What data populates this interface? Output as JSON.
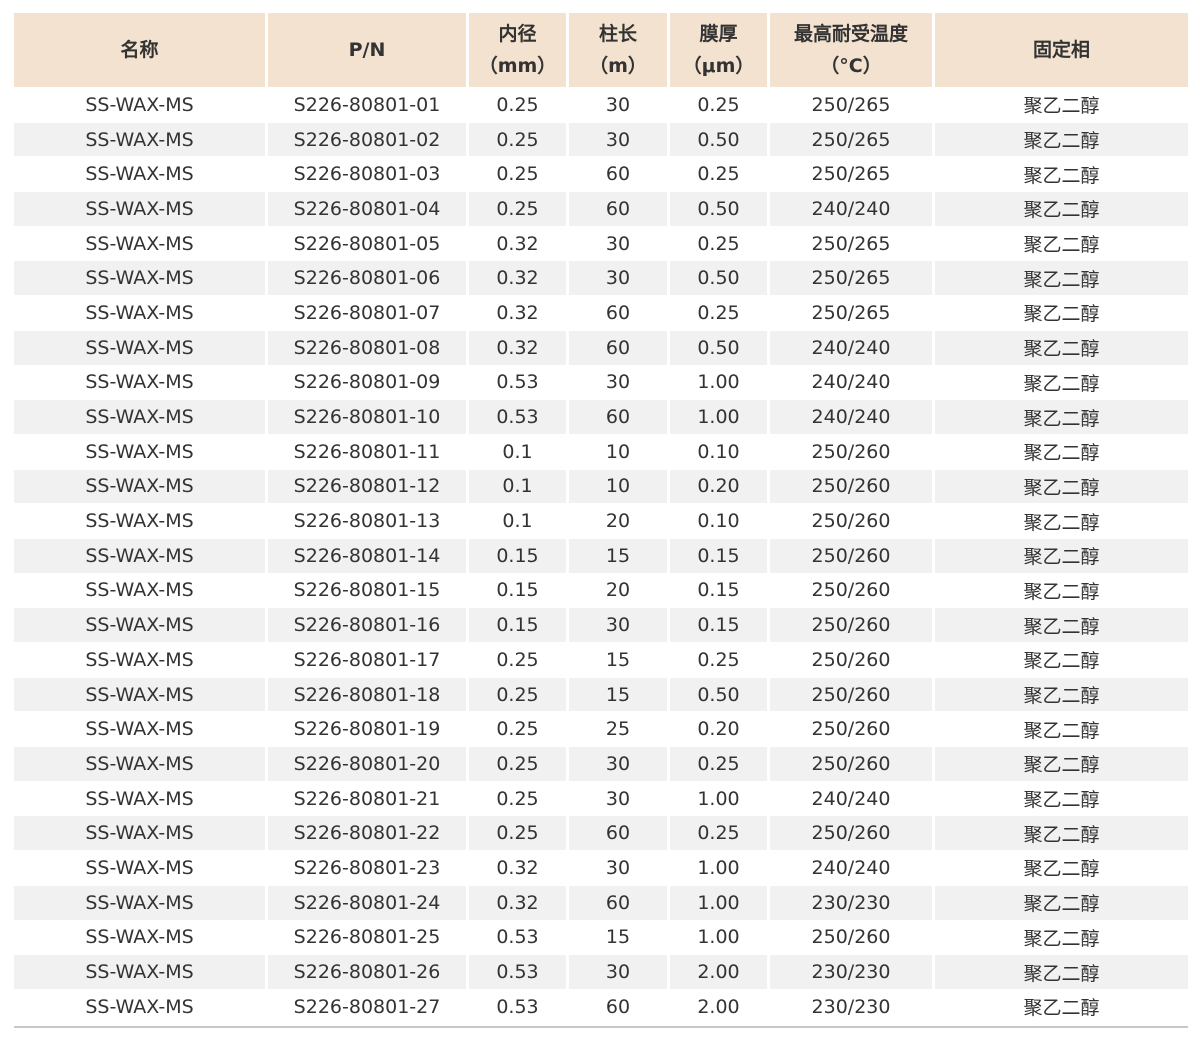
{
  "colors": {
    "header_bg": "#f3e2cf",
    "stripe_bg": "#f1f1f1",
    "text": "#333333"
  },
  "headers": [
    {
      "line1": "名称",
      "line2": ""
    },
    {
      "line1": "P/N",
      "line2": ""
    },
    {
      "line1": "内径",
      "line2": "（mm）"
    },
    {
      "line1": "柱长",
      "line2": "（m）"
    },
    {
      "line1": "膜厚",
      "line2": "（μm）"
    },
    {
      "line1": "最高耐受温度",
      "line2": "（°C）"
    },
    {
      "line1": "固定相",
      "line2": ""
    }
  ],
  "rows": [
    [
      "SS-WAX-MS",
      "S226-80801-01",
      "0.25",
      "30",
      "0.25",
      "250/265",
      "聚乙二醇"
    ],
    [
      "SS-WAX-MS",
      "S226-80801-02",
      "0.25",
      "30",
      "0.50",
      "250/265",
      "聚乙二醇"
    ],
    [
      "SS-WAX-MS",
      "S226-80801-03",
      "0.25",
      "60",
      "0.25",
      "250/265",
      "聚乙二醇"
    ],
    [
      "SS-WAX-MS",
      "S226-80801-04",
      "0.25",
      "60",
      "0.50",
      "240/240",
      "聚乙二醇"
    ],
    [
      "SS-WAX-MS",
      "S226-80801-05",
      "0.32",
      "30",
      "0.25",
      "250/265",
      "聚乙二醇"
    ],
    [
      "SS-WAX-MS",
      "S226-80801-06",
      "0.32",
      "30",
      "0.50",
      "250/265",
      "聚乙二醇"
    ],
    [
      "SS-WAX-MS",
      "S226-80801-07",
      "0.32",
      "60",
      "0.25",
      "250/265",
      "聚乙二醇"
    ],
    [
      "SS-WAX-MS",
      "S226-80801-08",
      "0.32",
      "60",
      "0.50",
      "240/240",
      "聚乙二醇"
    ],
    [
      "SS-WAX-MS",
      "S226-80801-09",
      "0.53",
      "30",
      "1.00",
      "240/240",
      "聚乙二醇"
    ],
    [
      "SS-WAX-MS",
      "S226-80801-10",
      "0.53",
      "60",
      "1.00",
      "240/240",
      "聚乙二醇"
    ],
    [
      "SS-WAX-MS",
      "S226-80801-11",
      "0.1",
      "10",
      "0.10",
      "250/260",
      "聚乙二醇"
    ],
    [
      "SS-WAX-MS",
      "S226-80801-12",
      "0.1",
      "10",
      "0.20",
      "250/260",
      "聚乙二醇"
    ],
    [
      "SS-WAX-MS",
      "S226-80801-13",
      "0.1",
      "20",
      "0.10",
      "250/260",
      "聚乙二醇"
    ],
    [
      "SS-WAX-MS",
      "S226-80801-14",
      "0.15",
      "15",
      "0.15",
      "250/260",
      "聚乙二醇"
    ],
    [
      "SS-WAX-MS",
      "S226-80801-15",
      "0.15",
      "20",
      "0.15",
      "250/260",
      "聚乙二醇"
    ],
    [
      "SS-WAX-MS",
      "S226-80801-16",
      "0.15",
      "30",
      "0.15",
      "250/260",
      "聚乙二醇"
    ],
    [
      "SS-WAX-MS",
      "S226-80801-17",
      "0.25",
      "15",
      "0.25",
      "250/260",
      "聚乙二醇"
    ],
    [
      "SS-WAX-MS",
      "S226-80801-18",
      "0.25",
      "15",
      "0.50",
      "250/260",
      "聚乙二醇"
    ],
    [
      "SS-WAX-MS",
      "S226-80801-19",
      "0.25",
      "25",
      "0.20",
      "250/260",
      "聚乙二醇"
    ],
    [
      "SS-WAX-MS",
      "S226-80801-20",
      "0.25",
      "30",
      "0.25",
      "250/260",
      "聚乙二醇"
    ],
    [
      "SS-WAX-MS",
      "S226-80801-21",
      "0.25",
      "30",
      "1.00",
      "240/240",
      "聚乙二醇"
    ],
    [
      "SS-WAX-MS",
      "S226-80801-22",
      "0.25",
      "60",
      "0.25",
      "250/260",
      "聚乙二醇"
    ],
    [
      "SS-WAX-MS",
      "S226-80801-23",
      "0.32",
      "30",
      "1.00",
      "240/240",
      "聚乙二醇"
    ],
    [
      "SS-WAX-MS",
      "S226-80801-24",
      "0.32",
      "60",
      "1.00",
      "230/230",
      "聚乙二醇"
    ],
    [
      "SS-WAX-MS",
      "S226-80801-25",
      "0.53",
      "15",
      "1.00",
      "250/260",
      "聚乙二醇"
    ],
    [
      "SS-WAX-MS",
      "S226-80801-26",
      "0.53",
      "30",
      "2.00",
      "230/230",
      "聚乙二醇"
    ],
    [
      "SS-WAX-MS",
      "S226-80801-27",
      "0.53",
      "60",
      "2.00",
      "230/230",
      "聚乙二醇"
    ]
  ]
}
